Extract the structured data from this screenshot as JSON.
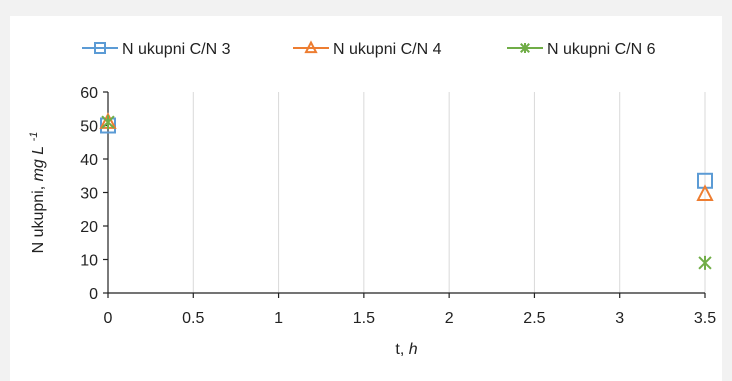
{
  "chart_data": {
    "type": "scatter",
    "xlabel": "t,",
    "xlabel_unit": "h",
    "ylabel": "N ukupni,",
    "ylabel_unit": "mg L",
    "ylabel_unit_sup": "-1",
    "xlim": [
      0,
      3.5
    ],
    "ylim": [
      0,
      60
    ],
    "xticks": [
      "0",
      "0.5",
      "1",
      "1.5",
      "2",
      "2.5",
      "3",
      "3.5"
    ],
    "yticks": [
      "0",
      "10",
      "20",
      "30",
      "40",
      "50",
      "60"
    ],
    "grid": "vertical",
    "legend_position": "top",
    "series": [
      {
        "name": "N ukupni C/N 3",
        "marker": "square",
        "color": "#5b9bd5",
        "x": [
          0,
          3.5
        ],
        "y": [
          50,
          33.5
        ]
      },
      {
        "name": "N ukupni C/N 4",
        "marker": "triangle",
        "color": "#ed7d31",
        "x": [
          0,
          3.5
        ],
        "y": [
          51,
          29.5
        ]
      },
      {
        "name": "N ukupni C/N 6",
        "marker": "star",
        "color": "#70ad47",
        "x": [
          0,
          3.5
        ],
        "y": [
          51,
          9
        ]
      }
    ]
  }
}
